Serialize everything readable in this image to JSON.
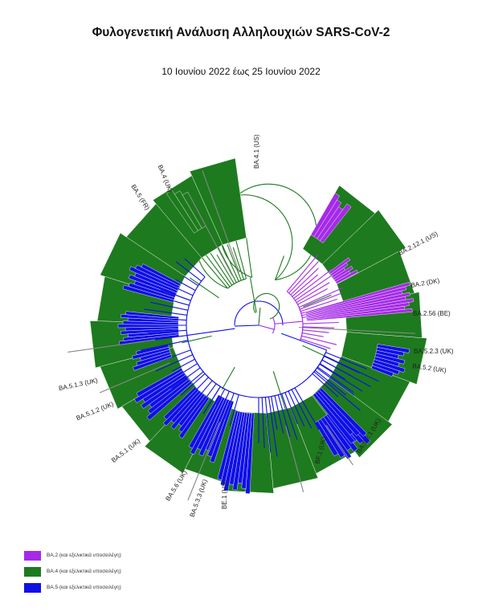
{
  "title": "Φυλογενετική Ανάλυση Αλληλουχιών SARS-CoV-2",
  "subtitle": "10 Ιουνίου 2022 έως 25 Ιουνίου 2022",
  "colors": {
    "ba2": "#a52ae8",
    "ba4": "#1e7a1e",
    "ba5": "#1010e6"
  },
  "labels": [
    {
      "id": "ba41",
      "text": "BA.4.1 (US)"
    },
    {
      "id": "ba4",
      "text": "BA.4 (UK)"
    },
    {
      "id": "ba5fr",
      "text": "BA.5 (FR)"
    },
    {
      "id": "ba2121",
      "text": "BA.2.12.1 (US)"
    },
    {
      "id": "ba2dk",
      "text": "BA.2 (DK)"
    },
    {
      "id": "ba256",
      "text": "BA.2.56 (BE)"
    },
    {
      "id": "ba523",
      "text": "BA.5.2.3 (UK)"
    },
    {
      "id": "ba52",
      "text": "BA.5.2 (UK)"
    },
    {
      "id": "ba521",
      "text": "BA.5.2.1 (UK)"
    },
    {
      "id": "bf1",
      "text": "BF.1 (UK)"
    },
    {
      "id": "be1",
      "text": "BE.1 (US)"
    },
    {
      "id": "ba533",
      "text": "BA.5.3.3 (UK)"
    },
    {
      "id": "ba56",
      "text": "BA.5.6 (UK)"
    },
    {
      "id": "ba51",
      "text": "BA.5.1 (UK)"
    },
    {
      "id": "ba512",
      "text": "BA.5.1.2 (UK)"
    },
    {
      "id": "ba513",
      "text": "BA.5.1.3 (UK)"
    }
  ],
  "legend": [
    {
      "label": "BA.2 (και εξελικτικά υποσειλέγη)",
      "color": "#a52ae8"
    },
    {
      "label": "BA.4 (και εξελικτικά υποσειλέγη)",
      "color": "#1e7a1e"
    },
    {
      "label": "BA.5 (και εξελικτικά υποσειλέγη)",
      "color": "#1010e6"
    }
  ]
}
